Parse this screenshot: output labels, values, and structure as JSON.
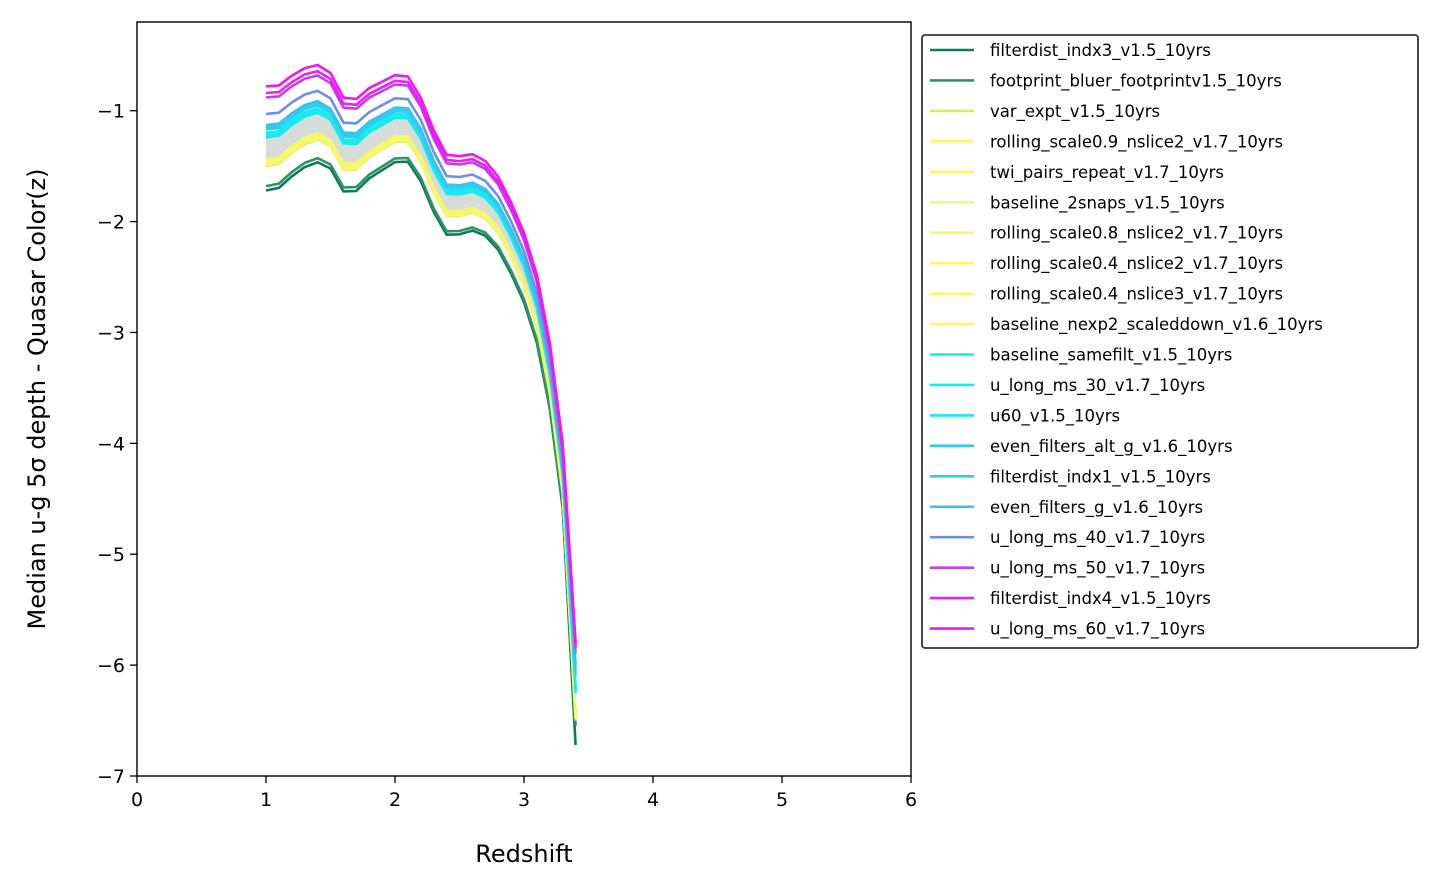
{
  "chart_data": {
    "type": "line",
    "title": "",
    "xlabel": "Redshift",
    "ylabel": "Median u-g 5σ depth - Quasar Color(z)",
    "xlim": [
      0,
      6
    ],
    "ylim": [
      -7,
      -0.2
    ],
    "xticks": [
      0,
      1,
      2,
      3,
      4,
      5,
      6
    ],
    "yticks": [
      -7,
      -6,
      -5,
      -4,
      -3,
      -2,
      -1
    ],
    "xtick_labels": [
      "0",
      "1",
      "2",
      "3",
      "4",
      "5",
      "6"
    ],
    "ytick_labels": [
      "−7",
      "−6",
      "−5",
      "−4",
      "−3",
      "−2",
      "−1"
    ],
    "legend_position": "outside-right",
    "x": [
      1.0,
      1.1,
      1.2,
      1.3,
      1.4,
      1.5,
      1.6,
      1.7,
      1.8,
      1.9,
      2.0,
      2.1,
      2.2,
      2.3,
      2.4,
      2.5,
      2.6,
      2.7,
      2.8,
      2.9,
      3.0,
      3.1,
      3.2,
      3.3,
      3.4
    ],
    "series": [
      {
        "name": "filterdist_indx3_v1.5_10yrs",
        "color": "#0d7a5c",
        "offset": -0.22,
        "cutoff": -6.72
      },
      {
        "name": "footprint_bluer_footprintv1.5_10yrs",
        "color": "#2f9463",
        "offset": -0.18,
        "cutoff": -6.55
      },
      {
        "name": "var_expt_v1.5_10yrs",
        "color": "#d9ed5b",
        "offset": 0.0,
        "cutoff": -6.5
      },
      {
        "name": "rolling_scale0.9_nslice2_v1.7_10yrs",
        "color": "#f8f86a",
        "offset": 0.01,
        "cutoff": -6.48
      },
      {
        "name": "twi_pairs_repeat_v1.7_10yrs",
        "color": "#f8f86a",
        "offset": 0.02,
        "cutoff": -6.47
      },
      {
        "name": "baseline_2snaps_v1.5_10yrs",
        "color": "#f5f572",
        "offset": 0.03,
        "cutoff": -6.46
      },
      {
        "name": "rolling_scale0.8_nslice2_v1.7_10yrs",
        "color": "#f8f86a",
        "offset": 0.04,
        "cutoff": -6.45
      },
      {
        "name": "rolling_scale0.4_nslice2_v1.7_10yrs",
        "color": "#f8f86a",
        "offset": 0.045,
        "cutoff": -6.44
      },
      {
        "name": "rolling_scale0.4_nslice3_v1.7_10yrs",
        "color": "#f8f86a",
        "offset": 0.05,
        "cutoff": -6.43
      },
      {
        "name": "baseline_nexp2_scaleddown_v1.6_10yrs",
        "color": "#f5f572",
        "offset": 0.06,
        "cutoff": -6.42
      },
      {
        "name": "baseline_samefilt_v1.5_10yrs",
        "color": "#1ae8f0",
        "offset": 0.26,
        "cutoff": -6.25
      },
      {
        "name": "u_long_ms_30_v1.7_10yrs",
        "color": "#14ecf2",
        "offset": 0.28,
        "cutoff": -6.22
      },
      {
        "name": "u60_v1.5_10yrs",
        "color": "#14ecf2",
        "offset": 0.3,
        "cutoff": -6.2
      },
      {
        "name": "even_filters_alt_g_v1.6_10yrs",
        "color": "#27d2f0",
        "offset": 0.33,
        "cutoff": -6.1
      },
      {
        "name": "filterdist_indx1_v1.5_10yrs",
        "color": "#2ccff0",
        "offset": 0.35,
        "cutoff": -6.05
      },
      {
        "name": "even_filters_g_v1.6_10yrs",
        "color": "#3cc0ee",
        "offset": 0.37,
        "cutoff": -6.0
      },
      {
        "name": "u_long_ms_40_v1.7_10yrs",
        "color": "#6a90ea",
        "offset": 0.47,
        "cutoff": -5.9
      },
      {
        "name": "u_long_ms_50_v1.7_10yrs",
        "color": "#c43ded",
        "offset": 0.62,
        "cutoff": -5.85
      },
      {
        "name": "filterdist_indx4_v1.5_10yrs",
        "color": "#e820f0",
        "offset": 0.66,
        "cutoff": -5.82
      },
      {
        "name": "u_long_ms_60_v1.7_10yrs",
        "color": "#f514f5",
        "offset": 0.72,
        "cutoff": -5.8
      }
    ],
    "reference_curve": [
      -1.5,
      -1.48,
      -1.38,
      -1.3,
      -1.26,
      -1.32,
      -1.53,
      -1.53,
      -1.42,
      -1.35,
      -1.28,
      -1.28,
      -1.46,
      -1.74,
      -1.95,
      -1.95,
      -1.92,
      -1.97,
      -2.1,
      -2.32,
      -2.58,
      -2.95,
      -3.55,
      -4.45,
      -6.45
    ],
    "shaded_band": {
      "color": "#c8d2cc",
      "series_low": "var_expt_v1.5_10yrs",
      "series_high": "u_long_ms_30_v1.7_10yrs"
    }
  }
}
